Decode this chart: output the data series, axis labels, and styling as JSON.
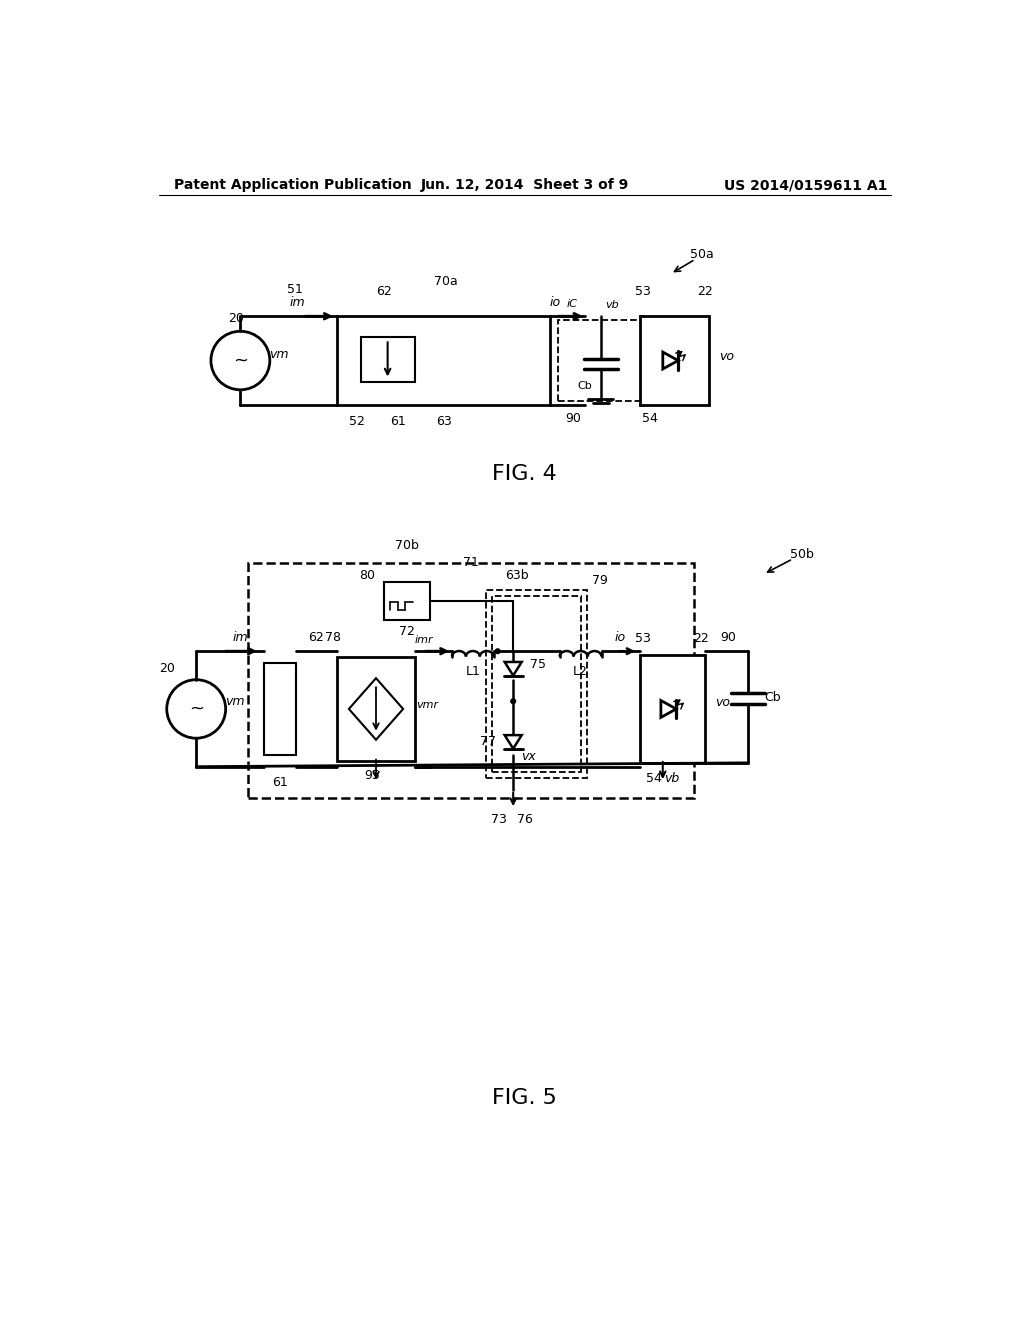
{
  "bg_color": "#ffffff",
  "header_left": "Patent Application Publication",
  "header_center": "Jun. 12, 2014  Sheet 3 of 9",
  "header_right": "US 2014/0159611 A1",
  "fig4_label": "FIG. 4",
  "fig5_label": "FIG. 5"
}
